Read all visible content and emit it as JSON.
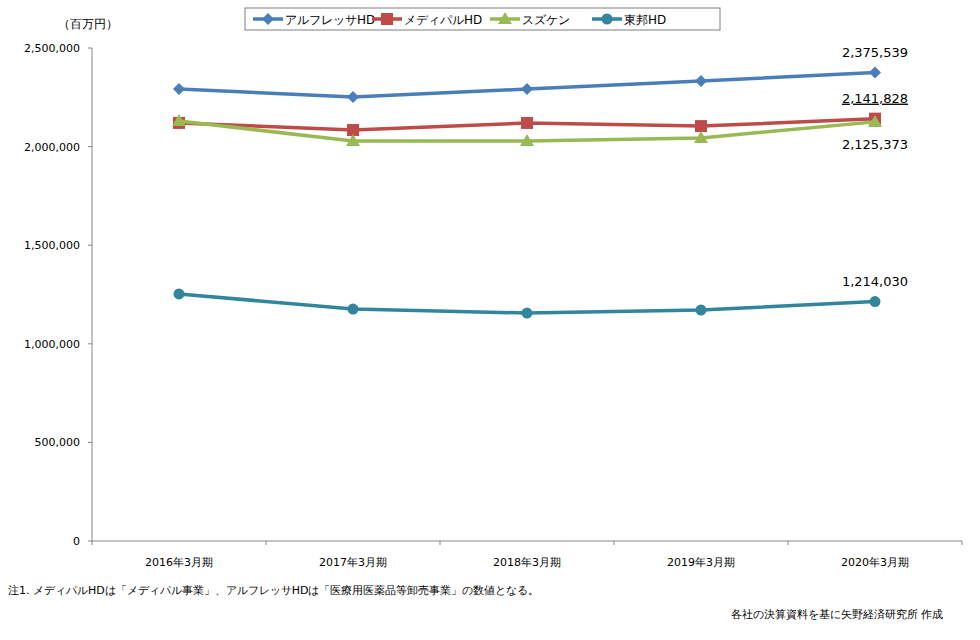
{
  "chart_data": {
    "type": "line",
    "y_label": "（百万円）",
    "categories": [
      "2016年3月期",
      "2017年3月期",
      "2018年3月期",
      "2019年3月期",
      "2020年3月期"
    ],
    "series": [
      {
        "name": "アルフレッサHD",
        "color": "#4a7ebb",
        "marker": "diamond",
        "values": [
          2292000,
          2251000,
          2292000,
          2333000,
          2375539
        ],
        "value_labels": [
          null,
          null,
          null,
          null,
          "2,375,539"
        ]
      },
      {
        "name": "メディパルHD",
        "color": "#be4b48",
        "marker": "square",
        "values": [
          2120000,
          2084000,
          2120000,
          2104000,
          2141828
        ],
        "value_labels": [
          null,
          null,
          null,
          null,
          "2,141,828"
        ]
      },
      {
        "name": "スズケン",
        "color": "#98b954",
        "marker": "triangle",
        "values": [
          2130000,
          2028000,
          2028000,
          2044000,
          2125373
        ],
        "value_labels": [
          null,
          null,
          null,
          null,
          "2,125,373"
        ]
      },
      {
        "name": "東邦HD",
        "color": "#31859c",
        "marker": "circle",
        "values": [
          1253000,
          1176000,
          1156000,
          1171000,
          1214030
        ],
        "value_labels": [
          null,
          null,
          null,
          null,
          "1,214,030"
        ]
      }
    ],
    "ylim": [
      0,
      2500000
    ],
    "yticks": [
      0,
      {
        "value": 500000,
        "label": "500,000"
      },
      {
        "value": 1000000,
        "label": "1,000,000"
      },
      {
        "value": 1500000,
        "label": "1,500,000"
      },
      {
        "value": 2000000,
        "label": "2,000,000"
      },
      {
        "value": 2500000,
        "label": "2,500,000"
      }
    ],
    "grid": false,
    "legend": "top",
    "data_labels": true,
    "note": "注1.  メディパルHDは「メディパル事業」、アルフレッサHDは「医療用医薬品等卸売事業」の数値となる。",
    "source": "各社の決算資料を基に矢野経済研究所 作成"
  }
}
